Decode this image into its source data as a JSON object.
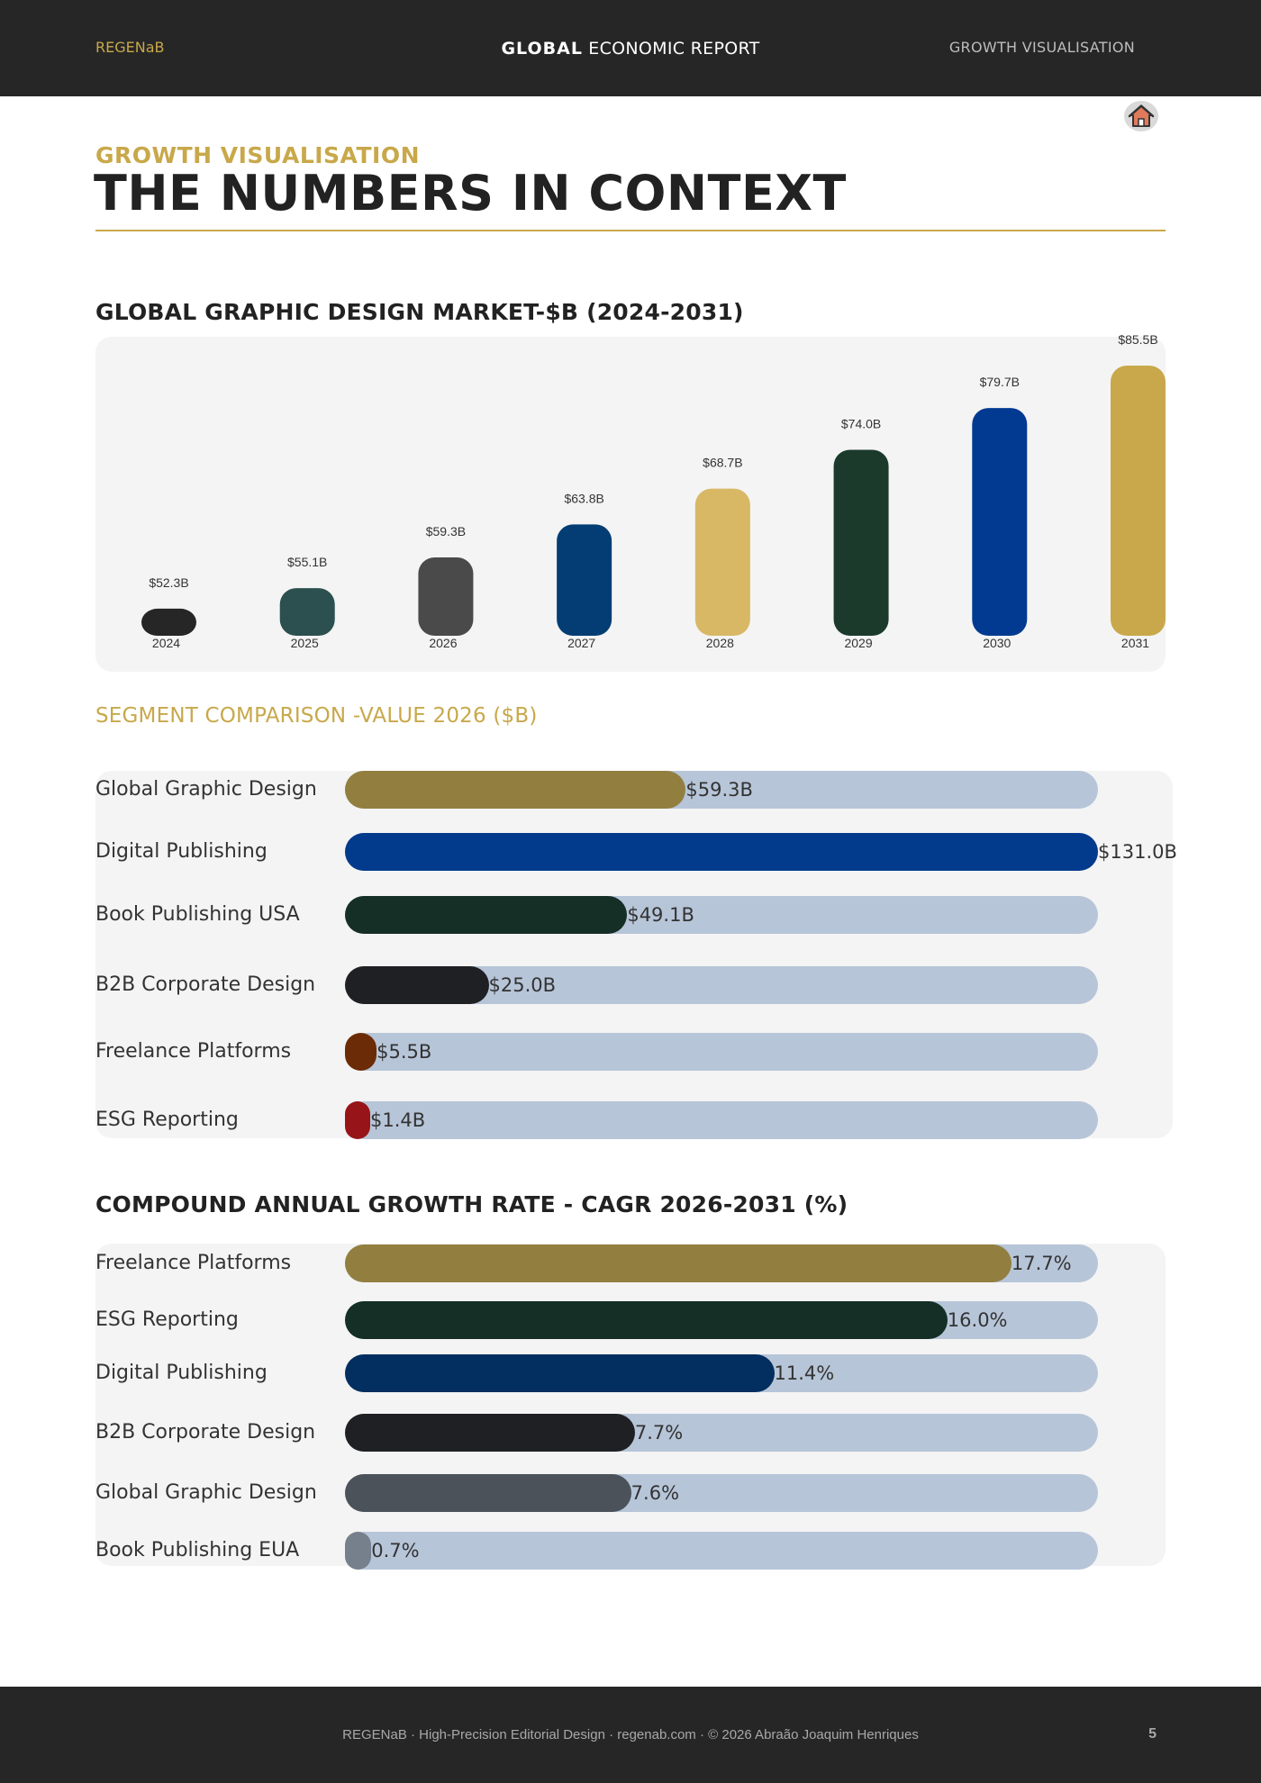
{
  "header": {
    "brand": "REGENaB",
    "title_bold": "GLOBAL",
    "title_rest": "ECONOMIC REPORT",
    "section": "GROWTH VISUALISATION"
  },
  "page": {
    "kicker": "GROWTH VISUALISATION",
    "title": "THE NUMBERS IN CONTEXT",
    "home_icon": "home-icon"
  },
  "chart_data": [
    {
      "type": "bar",
      "title": "GLOBAL GRAPHIC DESIGN MARKET-$B (2024-2031)",
      "categories": [
        "2024",
        "2025",
        "2026",
        "2027",
        "2028",
        "2029",
        "2030",
        "2031"
      ],
      "values": [
        52.3,
        55.1,
        59.3,
        63.8,
        68.7,
        74.0,
        79.7,
        85.5
      ],
      "labels": [
        "$52.3B",
        "$55.1B",
        "$59.3B",
        "$63.8B",
        "$68.7B",
        "$74.0B",
        "$79.7B",
        "$85.5B"
      ],
      "colors": [
        "#262626",
        "#2c4f4f",
        "#4a4a4a",
        "#033d73",
        "#d8b865",
        "#1b3a2c",
        "#023a92",
        "#c8a84a"
      ],
      "grid": false
    },
    {
      "type": "bar",
      "orientation": "horizontal",
      "title": "SEGMENT COMPARISON -VALUE 2026 ($B)",
      "categories": [
        "Global Graphic Design",
        "Digital Publishing",
        "Book Publishing USA",
        "B2B Corporate Design",
        "Freelance Platforms",
        "ESG Reporting"
      ],
      "values": [
        59.3,
        131.0,
        49.1,
        25.0,
        5.5,
        1.4
      ],
      "labels": [
        "$59.3B",
        "$131.0B",
        "$49.1B",
        "$25.0B",
        "$5.5B",
        "$1.4B"
      ],
      "colors": [
        "#927f40",
        "#023a8c",
        "#152e26",
        "#1f2023",
        "#6b2b06",
        "#971518"
      ],
      "max": 131.0
    },
    {
      "type": "bar",
      "orientation": "horizontal",
      "title": "COMPOUND ANNUAL GROWTH RATE - CAGR 2026-2031 (%)",
      "categories": [
        "Freelance Platforms",
        "ESG Reporting",
        "Digital Publishing",
        "B2B Corporate Design",
        "Global Graphic Design",
        "Book Publishing EUA"
      ],
      "values": [
        17.7,
        16.0,
        11.4,
        7.7,
        7.6,
        0.7
      ],
      "labels": [
        "17.7%",
        "16.0%",
        "11.4%",
        "7.7%",
        "7.6%",
        "0.7%"
      ],
      "colors": [
        "#927f40",
        "#152e26",
        "#022f5f",
        "#1f2023",
        "#4c525a",
        "#767f8c"
      ],
      "max": 20.0
    }
  ],
  "footer": {
    "text": "REGENaB · High-Precision Editorial Design · regenab.com · © 2026 Abraão Joaquim Henriques",
    "page_number": "5"
  }
}
